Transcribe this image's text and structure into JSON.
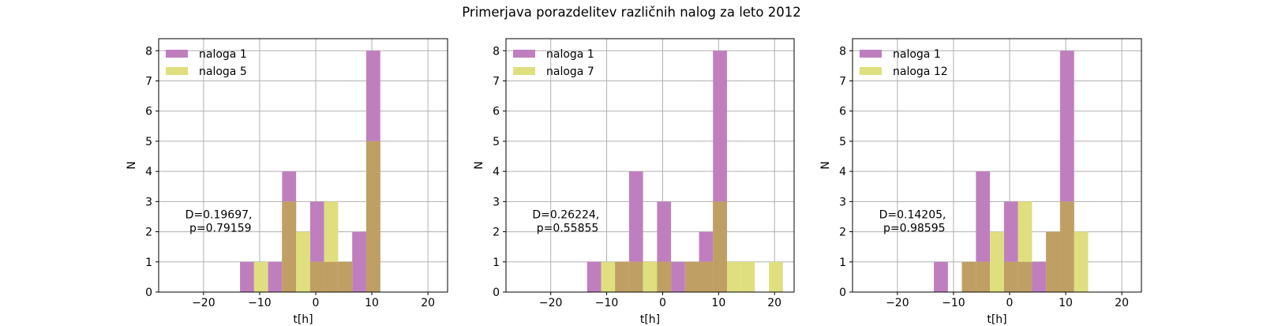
{
  "title": "Primerjava porazdelitev različnih nalog za leto 2012",
  "colors": {
    "series_a": "#bf7fbf",
    "series_b": "#dfdf7f",
    "overlap": "#bf9f64",
    "grid": "#b0b0b0"
  },
  "chart_data": [
    {
      "type": "bar",
      "title": "",
      "xlabel": "t[h]",
      "ylabel": "N",
      "xlim": [
        -28,
        23.5
      ],
      "ylim": [
        0,
        8.4
      ],
      "xticks": [
        -20,
        -10,
        0,
        10,
        20
      ],
      "xtick_labels": [
        "−20",
        "−10",
        "0",
        "10",
        "20"
      ],
      "yticks": [
        0,
        1,
        2,
        3,
        4,
        5,
        6,
        7,
        8
      ],
      "grid": true,
      "legend_position": "top-left",
      "annotation": "D=0.19697,\n p=0.79159",
      "series": [
        {
          "name": "naloga 1",
          "bins": [
            {
              "x0": -13.5,
              "x1": -11,
              "count": 1
            },
            {
              "x0": -8.5,
              "x1": -6,
              "count": 1
            },
            {
              "x0": -6,
              "x1": -3.5,
              "count": 4
            },
            {
              "x0": -1,
              "x1": 1.5,
              "count": 3
            },
            {
              "x0": 1.5,
              "x1": 4,
              "count": 1
            },
            {
              "x0": 4,
              "x1": 6.5,
              "count": 1
            },
            {
              "x0": 6.5,
              "x1": 9,
              "count": 2
            },
            {
              "x0": 9,
              "x1": 11.5,
              "count": 8
            }
          ]
        },
        {
          "name": "naloga 5",
          "bins": [
            {
              "x0": -11,
              "x1": -8.5,
              "count": 1
            },
            {
              "x0": -6,
              "x1": -3.5,
              "count": 3
            },
            {
              "x0": -3.5,
              "x1": -1,
              "count": 2
            },
            {
              "x0": -1,
              "x1": 1.5,
              "count": 1
            },
            {
              "x0": 1.5,
              "x1": 4,
              "count": 3
            },
            {
              "x0": 4,
              "x1": 6.5,
              "count": 1
            },
            {
              "x0": 9,
              "x1": 11.5,
              "count": 5
            }
          ]
        }
      ]
    },
    {
      "type": "bar",
      "title": "",
      "xlabel": "t[h]",
      "ylabel": "N",
      "xlim": [
        -28,
        23.5
      ],
      "ylim": [
        0,
        8.4
      ],
      "xticks": [
        -20,
        -10,
        0,
        10,
        20
      ],
      "xtick_labels": [
        "−20",
        "−10",
        "0",
        "10",
        "20"
      ],
      "yticks": [
        0,
        1,
        2,
        3,
        4,
        5,
        6,
        7,
        8
      ],
      "grid": true,
      "legend_position": "top-left",
      "annotation": "D=0.26224,\n p=0.55855",
      "series": [
        {
          "name": "naloga 1",
          "bins": [
            {
              "x0": -13.5,
              "x1": -11,
              "count": 1
            },
            {
              "x0": -8.5,
              "x1": -6,
              "count": 1
            },
            {
              "x0": -6,
              "x1": -3.5,
              "count": 4
            },
            {
              "x0": -1,
              "x1": 1.5,
              "count": 3
            },
            {
              "x0": 1.5,
              "x1": 4,
              "count": 1
            },
            {
              "x0": 4,
              "x1": 6.5,
              "count": 1
            },
            {
              "x0": 6.5,
              "x1": 9,
              "count": 2
            },
            {
              "x0": 9,
              "x1": 11.5,
              "count": 8
            }
          ]
        },
        {
          "name": "naloga 7",
          "bins": [
            {
              "x0": -11,
              "x1": -8.5,
              "count": 1
            },
            {
              "x0": -8.5,
              "x1": -6,
              "count": 1
            },
            {
              "x0": -6,
              "x1": -3.5,
              "count": 1
            },
            {
              "x0": -3.5,
              "x1": -1,
              "count": 1
            },
            {
              "x0": -1,
              "x1": 1.5,
              "count": 1
            },
            {
              "x0": 4,
              "x1": 6.5,
              "count": 1
            },
            {
              "x0": 6.5,
              "x1": 9,
              "count": 1
            },
            {
              "x0": 9,
              "x1": 11.5,
              "count": 3
            },
            {
              "x0": 11.5,
              "x1": 14,
              "count": 1
            },
            {
              "x0": 14,
              "x1": 16.5,
              "count": 1
            },
            {
              "x0": 19,
              "x1": 21.5,
              "count": 1
            }
          ]
        }
      ]
    },
    {
      "type": "bar",
      "title": "",
      "xlabel": "t[h]",
      "ylabel": "N",
      "xlim": [
        -28,
        23.5
      ],
      "ylim": [
        0,
        8.4
      ],
      "xticks": [
        -20,
        -10,
        0,
        10,
        20
      ],
      "xtick_labels": [
        "−20",
        "−10",
        "0",
        "10",
        "20"
      ],
      "yticks": [
        0,
        1,
        2,
        3,
        4,
        5,
        6,
        7,
        8
      ],
      "grid": true,
      "legend_position": "top-left",
      "annotation": "D=0.14205,\n p=0.98595",
      "series": [
        {
          "name": "naloga 1",
          "bins": [
            {
              "x0": -13.5,
              "x1": -11,
              "count": 1
            },
            {
              "x0": -8.5,
              "x1": -6,
              "count": 1
            },
            {
              "x0": -6,
              "x1": -3.5,
              "count": 4
            },
            {
              "x0": -1,
              "x1": 1.5,
              "count": 3
            },
            {
              "x0": 1.5,
              "x1": 4,
              "count": 1
            },
            {
              "x0": 4,
              "x1": 6.5,
              "count": 1
            },
            {
              "x0": 6.5,
              "x1": 9,
              "count": 2
            },
            {
              "x0": 9,
              "x1": 11.5,
              "count": 8
            }
          ]
        },
        {
          "name": "naloga 12",
          "bins": [
            {
              "x0": -8.5,
              "x1": -6,
              "count": 1
            },
            {
              "x0": -6,
              "x1": -3.5,
              "count": 1
            },
            {
              "x0": -3.5,
              "x1": -1,
              "count": 2
            },
            {
              "x0": -1,
              "x1": 1.5,
              "count": 1
            },
            {
              "x0": 1.5,
              "x1": 4,
              "count": 3
            },
            {
              "x0": 6.5,
              "x1": 9,
              "count": 2
            },
            {
              "x0": 9,
              "x1": 11.5,
              "count": 3
            },
            {
              "x0": 11.5,
              "x1": 14,
              "count": 2
            }
          ]
        }
      ]
    }
  ]
}
